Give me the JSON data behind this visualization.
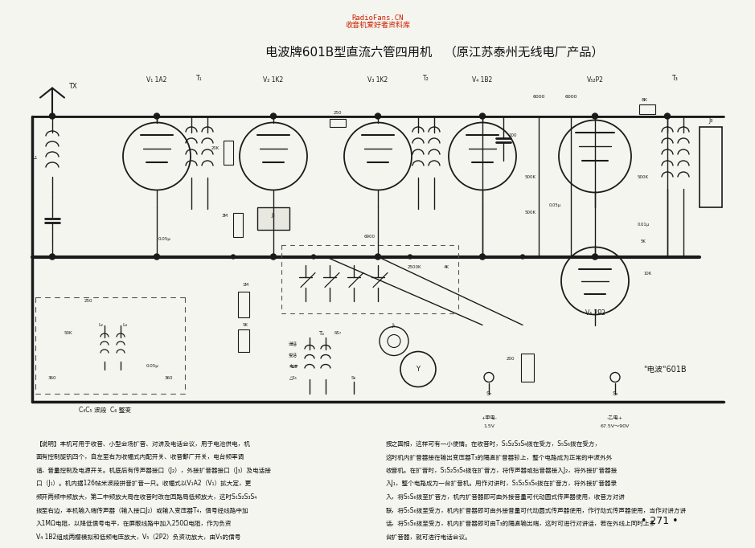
{
  "page_bg": "#f5f5f0",
  "watermark_text1": "RadioFans.CN",
  "watermark_text2": "收音机爱好者资料库",
  "watermark_color": "#cc2200",
  "title_text": "电波牌601B型直流六管四用机　（原江苏泰州无线电厂产品）",
  "page_num_text": "• 271 •",
  "desc_col1": [
    "【说明】本机可用于收音、小型会场扩音、对讲及电话会议，用于电池供电，机",
    "面有控制旋钒四个，自左至右为收幅式内配开关、收音鄱广开关，电台频率调",
    "谐，音量控制及电源开关。机底后有传声器接口（J₂），外接扩音器接口（J₃）及电话接",
    "口（J₁）。机内据126帖米波段拼音扩音一只。收幅式以V₁A2（V₁）拡大定，更",
    "频开两频中频放大，第二中频放大局在收音时改在回路局低频放大，这时S₁S₂S₃S₄",
    "拨至右边，本机输入端传声器（输入接口J₂）或输入变压器T₄，信号经线路中加",
    "入1MΩ电阻，以降低信号电平，在屏蔽线路中加入250Ω电阻，作为负资",
    "V₄ 1B2组成两樱模拟和低频电压放大，V₅（2P2）负资功放大，由V₅的信号"
  ],
  "desc_col2": [
    "按之固相，这样可有一小使情。在收音时，S₁S₂S₃S₄拨在受方，S₅S₆拨在受方，",
    "这时机内扩音器接在输出变压器T₃的隔直扩音器轸上，整个电路成为正常的中波外外",
    "收音机。在扩音时，S₁S₂S₃S₄拨在扩音方，将传声器或拾音器接入J₂，将外接扩音器接",
    "入J₁，整个电路成为一台扩音机。用作对讲时，S₁S₂S₃S₄拨在扩音方，将外接扩音器录",
    "入，将S₅S₆拨至扩音方，机内扩音器即可由外接音量可代动圆式传声器使用，收音方对讲",
    "联，将S₅S₆拨至受方，机内扩音器即可由外接音量可代动圆式传声器使用，作行动式传声器使用，当作对讲方讲",
    "话，将S₅S₆拨至受方，机内扩音器即可由T₃的隔直输出端，这时可进行对讲话，若在外线上同时上多",
    "台扩音器，就可进行电话会议。"
  ]
}
